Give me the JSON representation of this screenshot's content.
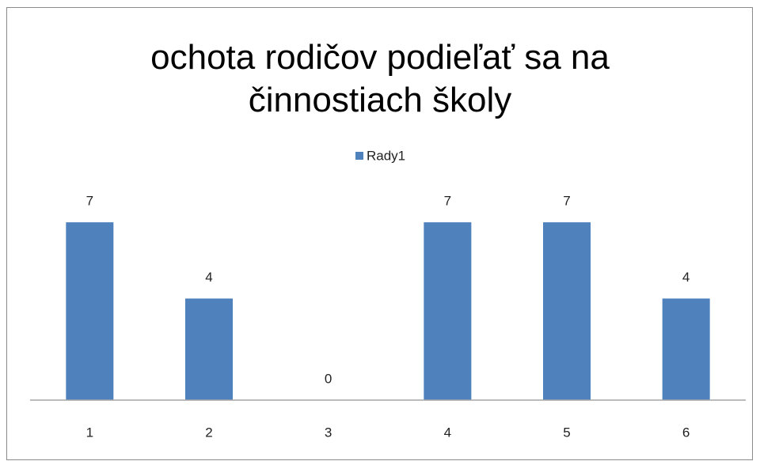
{
  "chart_data": {
    "type": "bar",
    "title": "ochota rodičov podieľať sa na činnostiach školy",
    "categories": [
      "1",
      "2",
      "3",
      "4",
      "5",
      "6"
    ],
    "series": [
      {
        "name": "Rady1",
        "color": "#4f81bd",
        "values": [
          7,
          4,
          0,
          7,
          7,
          4
        ]
      }
    ],
    "ylim": [
      0,
      8
    ],
    "legend": "top"
  }
}
